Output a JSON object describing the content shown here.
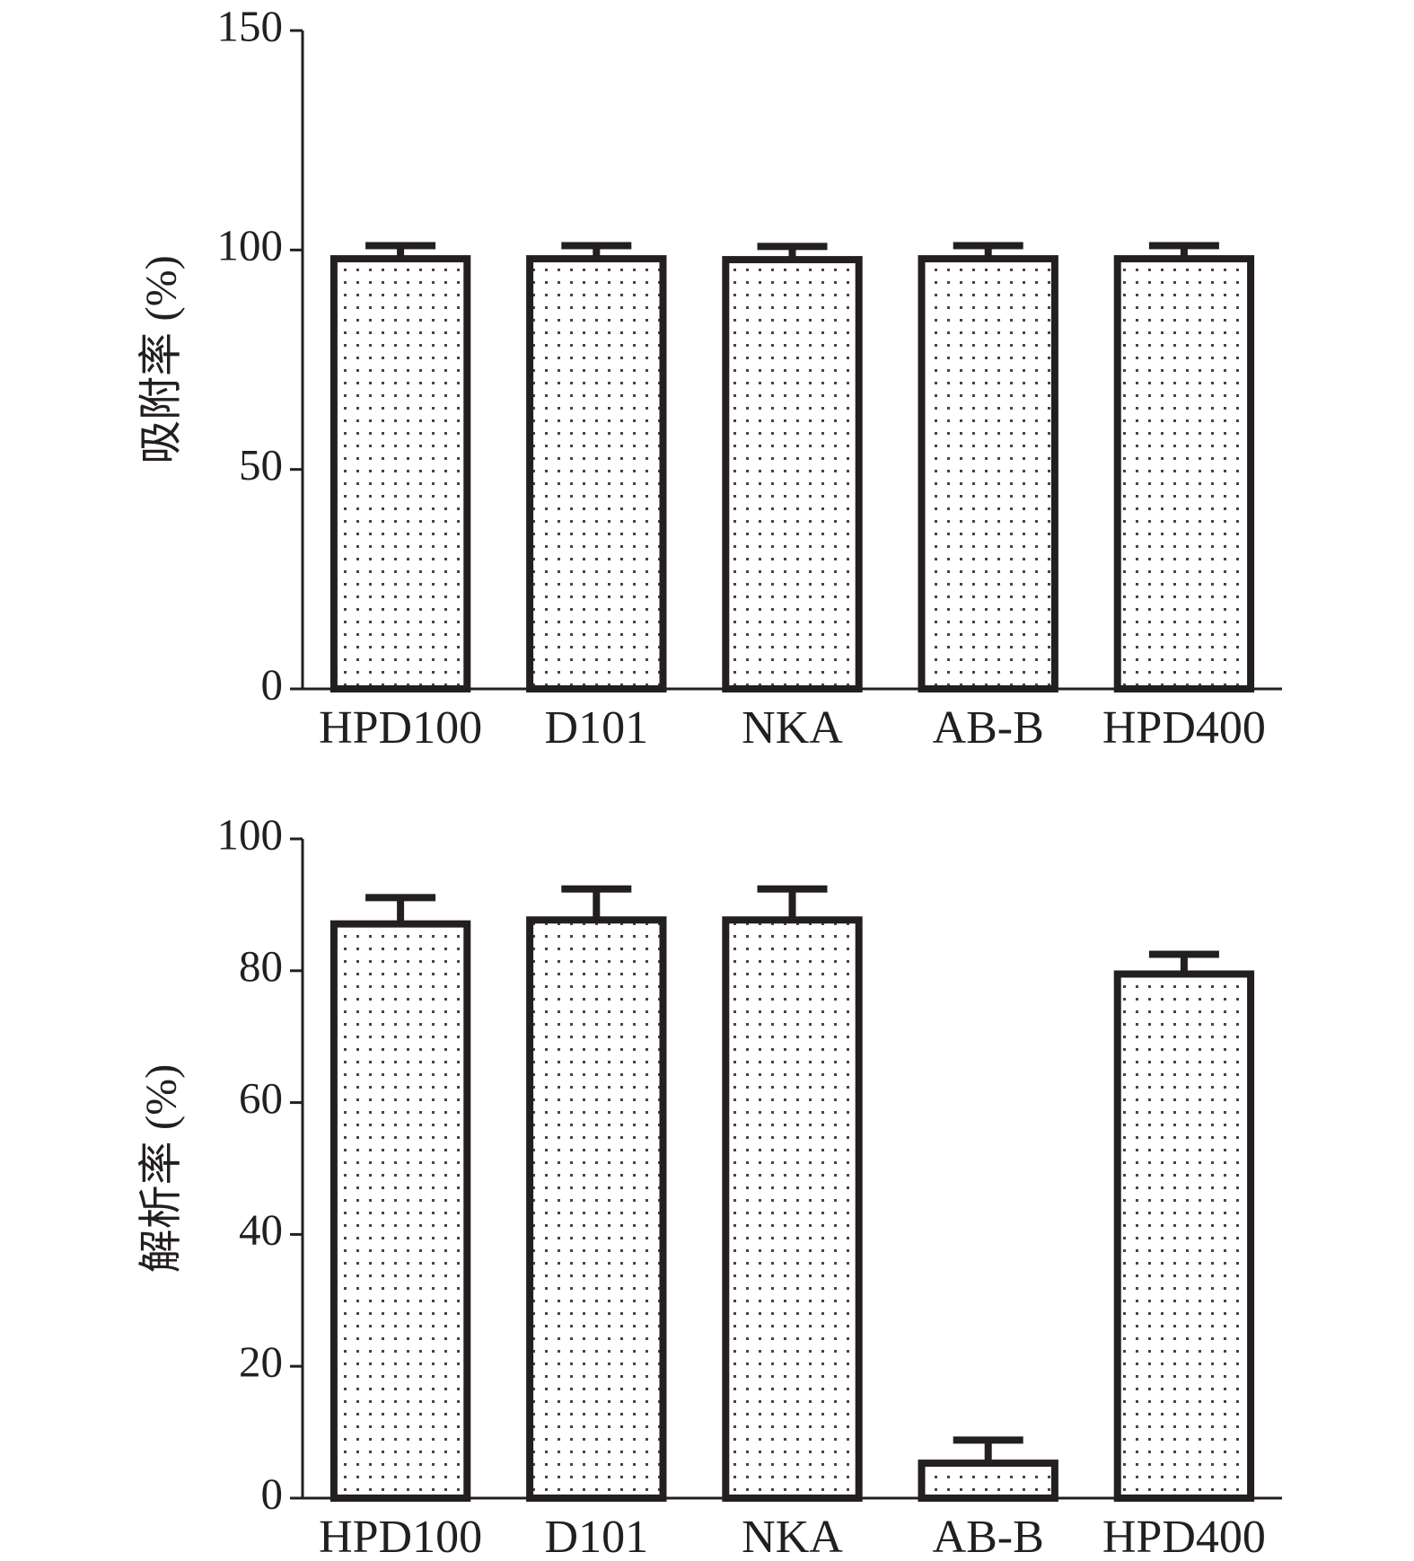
{
  "chart_data": [
    {
      "type": "bar",
      "y_label": "吸附率 (%)",
      "categories": [
        "HPD100",
        "D101",
        "NKA",
        "AB-B",
        "HPD400"
      ],
      "values": [
        98,
        98,
        97.8,
        98,
        98
      ],
      "errors": [
        3,
        3,
        3,
        3,
        3
      ],
      "color": "#231f20",
      "ylim": [
        0,
        150
      ],
      "yticks": [
        0,
        50,
        100,
        150
      ]
    },
    {
      "type": "bar",
      "y_label": "解析率 (%)",
      "categories": [
        "HPD100",
        "D101",
        "NKA",
        "AB-B",
        "HPD400"
      ],
      "values": [
        87.1,
        87.7,
        87.7,
        5.3,
        79.5
      ],
      "errors": [
        4,
        4.7,
        4.7,
        3.5,
        3
      ],
      "color": "#231f20",
      "ylim": [
        0,
        100
      ],
      "yticks": [
        0,
        20,
        40,
        60,
        80,
        100
      ]
    }
  ]
}
